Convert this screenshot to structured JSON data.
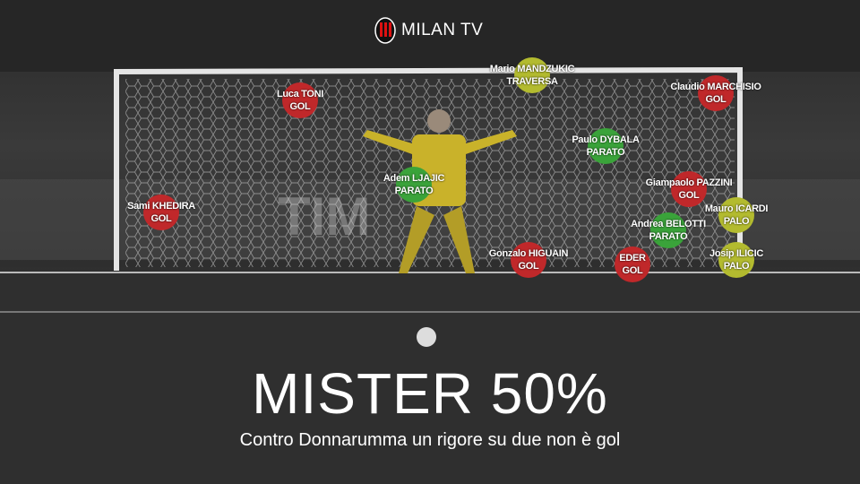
{
  "brand": {
    "name": "MILAN TV",
    "logo_text": "ACM 1899"
  },
  "colors": {
    "gol": "#c0282a",
    "parato": "#3aa33a",
    "palo": "#b3bb2f",
    "traversa": "#b3bb2f",
    "keeper": "#c9b22a"
  },
  "penalties": [
    {
      "player": "Luca TONI",
      "outcome": "GOL",
      "type": "gol"
    },
    {
      "player": "Mario MANDZUKIC",
      "outcome": "TRAVERSA",
      "type": "traversa"
    },
    {
      "player": "Claudio MARCHISIO",
      "outcome": "GOL",
      "type": "gol"
    },
    {
      "player": "Paulo DYBALA",
      "outcome": "PARATO",
      "type": "parato"
    },
    {
      "player": "Adem LJAJIC",
      "outcome": "PARATO",
      "type": "parato"
    },
    {
      "player": "Sami KHEDIRA",
      "outcome": "GOL",
      "type": "gol"
    },
    {
      "player": "Giampaolo PAZZINI",
      "outcome": "GOL",
      "type": "gol"
    },
    {
      "player": "Mauro ICARDI",
      "outcome": "PALO",
      "type": "palo"
    },
    {
      "player": "Andrea BELOTTI",
      "outcome": "PARATO",
      "type": "parato"
    },
    {
      "player": "Gonzalo HIGUAIN",
      "outcome": "GOL",
      "type": "gol"
    },
    {
      "player": "EDER",
      "outcome": "GOL",
      "type": "gol"
    },
    {
      "player": "Josip ILICIC",
      "outcome": "PALO",
      "type": "palo"
    }
  ],
  "headline": {
    "title": "MISTER 50%",
    "subtitle": "Contro Donnarumma un rigore su due non è gol"
  }
}
